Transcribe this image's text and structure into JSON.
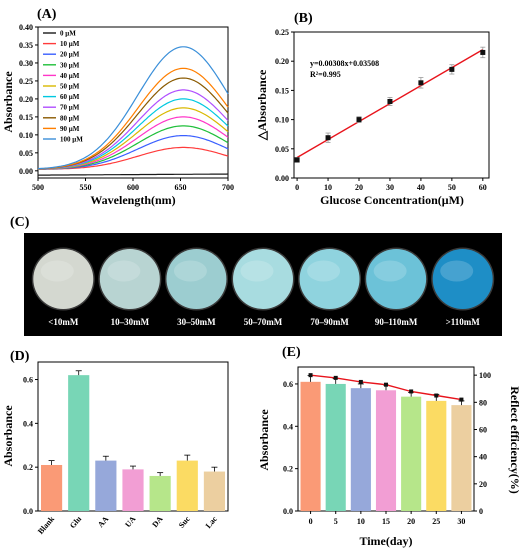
{
  "chart_data": [
    {
      "panel": "(A)",
      "type": "line",
      "xlabel": "Wavelength(nm)",
      "ylabel": "Absorbance",
      "xlim": [
        500,
        700
      ],
      "ylim": [
        -0.02,
        0.4
      ],
      "xticks": [
        500,
        550,
        600,
        650,
        700
      ],
      "yticks": [
        0.0,
        0.05,
        0.1,
        0.15,
        0.2,
        0.25,
        0.3,
        0.35,
        0.4
      ],
      "ytick_labels": [
        "0.00",
        "0.05",
        "0.10",
        "0.15",
        "0.20",
        "0.25",
        "0.30",
        "0.35",
        "0.40"
      ],
      "peak_x": 653,
      "legend_position": "top-left",
      "series": [
        {
          "name": "0 μM",
          "peak": -0.012,
          "color": "#1a1a1a"
        },
        {
          "name": "10 μM",
          "peak": 0.065,
          "color": "#ff3b3b"
        },
        {
          "name": "20 μM",
          "peak": 0.098,
          "color": "#3a5fff"
        },
        {
          "name": "30 μM",
          "peak": 0.125,
          "color": "#1fbf3a"
        },
        {
          "name": "40 μM",
          "peak": 0.15,
          "color": "#ff36c8"
        },
        {
          "name": "50 μM",
          "peak": 0.175,
          "color": "#d9b800"
        },
        {
          "name": "60 μM",
          "peak": 0.2,
          "color": "#00c8e0"
        },
        {
          "name": "70 μM",
          "peak": 0.225,
          "color": "#b04fff"
        },
        {
          "name": "80 μM",
          "peak": 0.258,
          "color": "#8a5a00"
        },
        {
          "name": "90 μM",
          "peak": 0.285,
          "color": "#ff7f00"
        },
        {
          "name": "100 μM",
          "peak": 0.345,
          "color": "#3a8fd9"
        }
      ]
    },
    {
      "panel": "(B)",
      "type": "scatter",
      "xlabel": "Glucose Concentration(μM)",
      "ylabel": "△Absorbance",
      "xlim": [
        -1,
        62
      ],
      "ylim": [
        0,
        0.25
      ],
      "xticks": [
        0,
        10,
        20,
        30,
        40,
        50,
        60
      ],
      "yticks": [
        0.0,
        0.05,
        0.1,
        0.15,
        0.2,
        0.25
      ],
      "ytick_labels": [
        "0.00",
        "0.05",
        "0.10",
        "0.15",
        "0.20",
        "0.25"
      ],
      "x": [
        0,
        10,
        20,
        30,
        40,
        50,
        60
      ],
      "y": [
        0.031,
        0.069,
        0.1,
        0.131,
        0.163,
        0.186,
        0.215
      ],
      "err": [
        0.004,
        0.008,
        0.005,
        0.007,
        0.009,
        0.008,
        0.009
      ],
      "fit": {
        "slope": 0.00308,
        "intercept": 0.03508
      },
      "equation": "y=0.00308x+0.03508",
      "r2": "R²=0.995"
    },
    {
      "panel": "(C)",
      "type": "photo",
      "labels": [
        "<10mM",
        "10–30mM",
        "30–50mM",
        "50–70mM",
        "70–90mM",
        "90–110mM",
        ">110mM"
      ],
      "colors": [
        "#d4d8d0",
        "#b8d4d2",
        "#9ccdd0",
        "#a8dce0",
        "#8fd3de",
        "#6cc2d8",
        "#1e8ec6"
      ]
    },
    {
      "panel": "(D)",
      "type": "bar",
      "ylabel": "Absorbance",
      "ylim": [
        0,
        0.68
      ],
      "yticks": [
        0.0,
        0.2,
        0.4,
        0.6
      ],
      "ytick_labels": [
        "0.0",
        "0.2",
        "0.4",
        "0.6"
      ],
      "categories": [
        "Blank",
        "Glu",
        "AA",
        "UA",
        "DA",
        "Suc",
        "Lac"
      ],
      "values": [
        0.21,
        0.62,
        0.23,
        0.19,
        0.16,
        0.23,
        0.18
      ],
      "err": [
        0.02,
        0.02,
        0.02,
        0.015,
        0.015,
        0.025,
        0.02
      ],
      "colors": [
        "#fa9a76",
        "#78d6b6",
        "#96a8da",
        "#f29ed4",
        "#b6e68a",
        "#fbdb63",
        "#eccfa0"
      ]
    },
    {
      "panel": "(E)",
      "type": "bar",
      "xlabel": "Time(day)",
      "ylabel": "Absorbance",
      "ylabel_right": "Reflect efficiency(%)",
      "ylim": [
        0,
        0.68
      ],
      "yticks": [
        0.0,
        0.2,
        0.4,
        0.6
      ],
      "ytick_labels": [
        "0.0",
        "0.2",
        "0.4",
        "0.6"
      ],
      "y2lim": [
        0,
        106
      ],
      "y2ticks": [
        0,
        20,
        40,
        60,
        80,
        100
      ],
      "categories": [
        "0",
        "5",
        "10",
        "15",
        "20",
        "25",
        "30"
      ],
      "values": [
        0.61,
        0.6,
        0.58,
        0.57,
        0.54,
        0.52,
        0.5
      ],
      "err": [
        0.03,
        0.025,
        0.02,
        0.025,
        0.02,
        0.03,
        0.02
      ],
      "colors": [
        "#fa9a76",
        "#78d6b6",
        "#96a8da",
        "#f29ed4",
        "#b6e68a",
        "#fbdb63",
        "#eccfa0"
      ],
      "line": {
        "values": [
          100,
          98,
          95,
          93,
          88,
          85,
          82
        ],
        "color": "#e8141c"
      }
    }
  ]
}
